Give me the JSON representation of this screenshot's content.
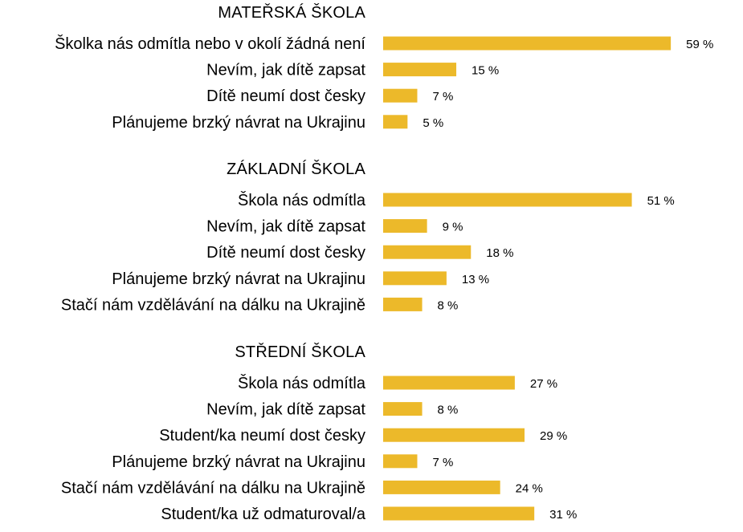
{
  "chart_data": {
    "type": "bar",
    "orientation": "horizontal",
    "bar_color": "#ecb92a",
    "value_suffix": " %",
    "xlim": [
      0,
      100
    ],
    "groups": [
      {
        "title": "MATEŘSKÁ ŠKOLA",
        "categories": [
          "Školka nás odmítla nebo v okolí žádná není",
          "Nevím, jak dítě zapsat",
          "Dítě neumí dost česky",
          "Plánujeme brzký návrat na Ukrajinu"
        ],
        "values": [
          59,
          15,
          7,
          5
        ]
      },
      {
        "title": "ZÁKLADNÍ ŠKOLA",
        "categories": [
          "Škola nás odmítla",
          "Nevím, jak dítě zapsat",
          "Dítě neumí dost česky",
          "Plánujeme brzký návrat na Ukrajinu",
          "Stačí nám vzdělávání na dálku na Ukrajině"
        ],
        "values": [
          51,
          9,
          18,
          13,
          8
        ]
      },
      {
        "title": "STŘEDNÍ ŠKOLA",
        "categories": [
          "Škola nás odmítla",
          "Nevím, jak dítě zapsat",
          "Student/ka neumí dost česky",
          "Plánujeme brzký návrat na Ukrajinu",
          "Stačí nám vzdělávání na dálku na Ukrajině",
          "Student/ka už odmaturoval/a"
        ],
        "values": [
          27,
          8,
          29,
          7,
          24,
          31
        ]
      }
    ]
  }
}
